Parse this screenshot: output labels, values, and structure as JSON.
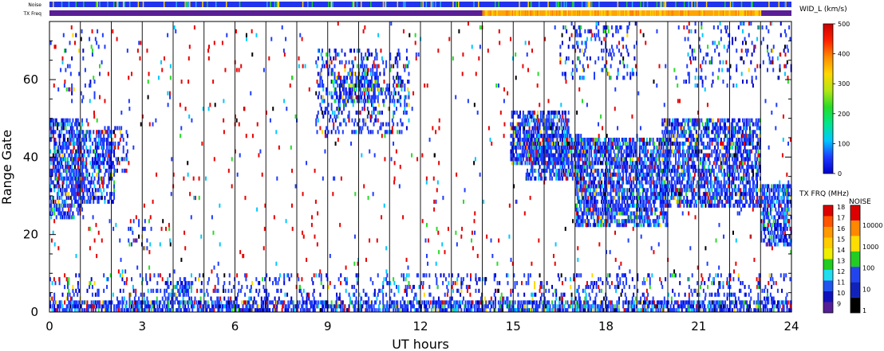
{
  "chart_data": {
    "type": "heatmap",
    "xlabel": "UT hours",
    "ylabel": "Range Gate",
    "xlim": [
      0,
      24
    ],
    "ylim": [
      0,
      75
    ],
    "x_ticks": [
      "0",
      "3",
      "6",
      "9",
      "12",
      "15",
      "18",
      "21",
      "24"
    ],
    "x_tick_values": [
      0,
      3,
      6,
      9,
      12,
      15,
      18,
      21,
      24
    ],
    "y_ticks": [
      "0",
      "20",
      "40",
      "60"
    ],
    "y_tick_values": [
      0,
      20,
      40,
      60
    ],
    "hour_gridlines": [
      1,
      2,
      3,
      4,
      5,
      6,
      7,
      8,
      9,
      10,
      11,
      12,
      13,
      14,
      15,
      16,
      17,
      18,
      19,
      20,
      21,
      22,
      23
    ],
    "top_strips": [
      {
        "label": "Noise",
        "base_color": "#2233ee",
        "speckle_colors": [
          "#22cc22",
          "#33aaee",
          "#ffd700"
        ]
      },
      {
        "label": "TX Freq",
        "segments": [
          {
            "start": 0,
            "end": 14,
            "color": "#5a1e96"
          },
          {
            "start": 14,
            "end": 23,
            "color": "#ffa500"
          },
          {
            "start": 23,
            "end": 24,
            "color": "#5a1e96"
          }
        ]
      }
    ],
    "regions": [
      {
        "x0": 0.0,
        "x1": 1.1,
        "y0": 24,
        "y1": 50,
        "density": 0.5
      },
      {
        "x0": 0.7,
        "x1": 2.1,
        "y0": 28,
        "y1": 47,
        "density": 0.4
      },
      {
        "x0": 0.4,
        "x1": 1.8,
        "y0": 54,
        "y1": 72,
        "density": 0.08
      },
      {
        "x0": 1.5,
        "x1": 2.5,
        "y0": 36,
        "y1": 48,
        "density": 0.25
      },
      {
        "x0": 2.5,
        "x1": 3.3,
        "y0": 16,
        "y1": 25,
        "density": 0.12
      },
      {
        "x0": 3.7,
        "x1": 4.6,
        "y0": 3,
        "y1": 8,
        "density": 0.45
      },
      {
        "x0": 8.6,
        "x1": 11.6,
        "y0": 46,
        "y1": 68,
        "density": 0.22
      },
      {
        "x0": 9.2,
        "x1": 10.6,
        "y0": 54,
        "y1": 62,
        "density": 0.45
      },
      {
        "x0": 14.9,
        "x1": 16.8,
        "y0": 38,
        "y1": 52,
        "density": 0.55
      },
      {
        "x0": 15.4,
        "x1": 17.2,
        "y0": 34,
        "y1": 46,
        "density": 0.45
      },
      {
        "x0": 17.0,
        "x1": 20.0,
        "y0": 22,
        "y1": 45,
        "density": 0.58
      },
      {
        "x0": 19.8,
        "x1": 23.0,
        "y0": 27,
        "y1": 50,
        "density": 0.55
      },
      {
        "x0": 23.0,
        "x1": 24.0,
        "y0": 17,
        "y1": 33,
        "density": 0.55
      },
      {
        "x0": 16.5,
        "x1": 19.0,
        "y0": 60,
        "y1": 75,
        "density": 0.12
      },
      {
        "x0": 20.5,
        "x1": 24.0,
        "y0": 58,
        "y1": 75,
        "density": 0.1
      },
      {
        "x0": 0.0,
        "x1": 24.0,
        "y0": 0,
        "y1": 3,
        "density": 0.6
      },
      {
        "x0": 0.0,
        "x1": 24.0,
        "y0": 3,
        "y1": 10,
        "density": 0.14
      }
    ],
    "colorbars": [
      {
        "title": "WID_L (km/s)",
        "type": "gradient",
        "min": 0,
        "max": 500,
        "tick_values": [
          0,
          100,
          200,
          300,
          400,
          500
        ],
        "tick_labels": [
          "0",
          "100",
          "200",
          "300",
          "400",
          "500"
        ],
        "stops": [
          "#0000cc",
          "#1e3cff",
          "#00c8ff",
          "#00e68c",
          "#28dc28",
          "#b4e614",
          "#ffd700",
          "#ff8c00",
          "#ff2000",
          "#cc0000"
        ]
      },
      {
        "title": "TX FRQ (MHz)",
        "type": "discrete",
        "labels": [
          "18",
          "17",
          "16",
          "15",
          "14",
          "13",
          "12",
          "11",
          "10",
          "9"
        ],
        "colors": [
          "#dd0000",
          "#ff5500",
          "#ff9900",
          "#ffcc00",
          "#eeee00",
          "#22cc22",
          "#22ddee",
          "#2255ee",
          "#1111bb",
          "#551e96"
        ]
      },
      {
        "title": "NOISE",
        "type": "discrete",
        "labels": [
          "10000",
          "1000",
          "100",
          "10",
          "1"
        ],
        "colors": [
          "#dd0000",
          "#ff8800",
          "#ffdd00",
          "#22cc22",
          "#2244ee",
          "#1122bb",
          "#000000"
        ]
      }
    ]
  }
}
